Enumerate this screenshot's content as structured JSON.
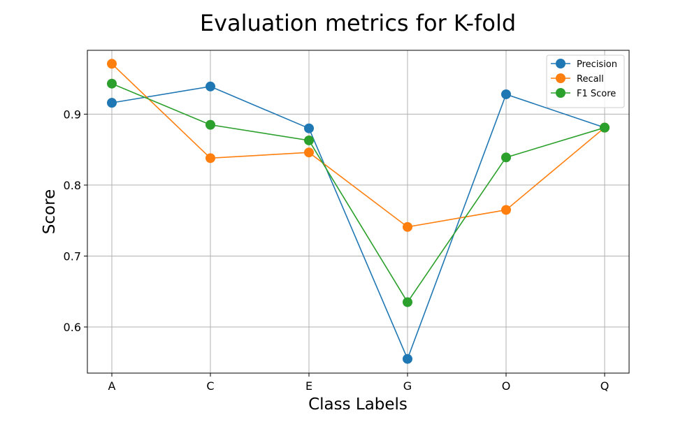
{
  "chart_data": {
    "type": "line",
    "title": "Evaluation metrics for K-fold",
    "xlabel": "Class Labels",
    "ylabel": "Score",
    "categories": [
      "A",
      "C",
      "E",
      "G",
      "O",
      "Q"
    ],
    "ylim": [
      0.535,
      0.99
    ],
    "yticks": [
      0.6,
      0.7,
      0.8,
      0.9
    ],
    "ytick_labels": [
      "0.6",
      "0.7",
      "0.8",
      "0.9"
    ],
    "grid": true,
    "legend_position": "top-right",
    "marker": "circle",
    "series": [
      {
        "name": "Precision",
        "color": "#1f77b4",
        "values": [
          0.916,
          0.939,
          0.88,
          0.555,
          0.928,
          0.881
        ]
      },
      {
        "name": "Recall",
        "color": "#ff7f0e",
        "values": [
          0.971,
          0.838,
          0.846,
          0.741,
          0.765,
          0.881
        ]
      },
      {
        "name": "F1 Score",
        "color": "#2ca02c",
        "values": [
          0.943,
          0.885,
          0.863,
          0.635,
          0.839,
          0.881
        ]
      }
    ]
  }
}
